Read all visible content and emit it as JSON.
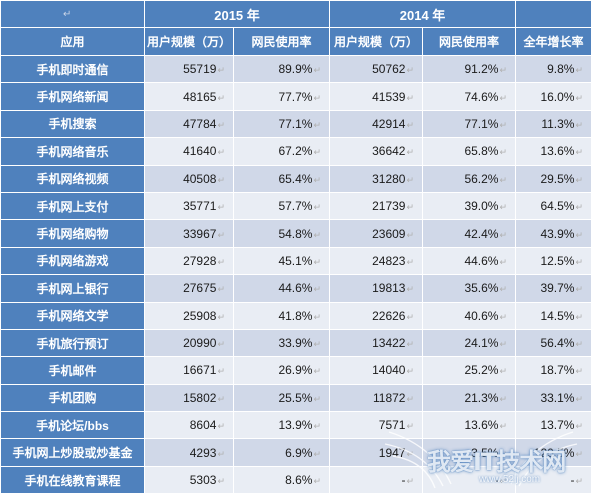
{
  "table": {
    "corner_mark": "↵",
    "year_2015": "2015 年",
    "year_2014": "2014 年",
    "col_app": "应用",
    "col_users_2015": "用户规模（万）",
    "col_rate_2015": "网民使用率",
    "col_users_2014": "用户规模（万）",
    "col_rate_2014": "网民使用率",
    "col_growth": "全年增长率",
    "rows": [
      {
        "app": "手机即时通信",
        "u2015": "55719",
        "r2015": "89.9%",
        "u2014": "50762",
        "r2014": "91.2%",
        "growth": "9.8%"
      },
      {
        "app": "手机网络新闻",
        "u2015": "48165",
        "r2015": "77.7%",
        "u2014": "41539",
        "r2014": "74.6%",
        "growth": "16.0%"
      },
      {
        "app": "手机搜索",
        "u2015": "47784",
        "r2015": "77.1%",
        "u2014": "42914",
        "r2014": "77.1%",
        "growth": "11.3%"
      },
      {
        "app": "手机网络音乐",
        "u2015": "41640",
        "r2015": "67.2%",
        "u2014": "36642",
        "r2014": "65.8%",
        "growth": "13.6%"
      },
      {
        "app": "手机网络视频",
        "u2015": "40508",
        "r2015": "65.4%",
        "u2014": "31280",
        "r2014": "56.2%",
        "growth": "29.5%"
      },
      {
        "app": "手机网上支付",
        "u2015": "35771",
        "r2015": "57.7%",
        "u2014": "21739",
        "r2014": "39.0%",
        "growth": "64.5%"
      },
      {
        "app": "手机网络购物",
        "u2015": "33967",
        "r2015": "54.8%",
        "u2014": "23609",
        "r2014": "42.4%",
        "growth": "43.9%"
      },
      {
        "app": "手机网络游戏",
        "u2015": "27928",
        "r2015": "45.1%",
        "u2014": "24823",
        "r2014": "44.6%",
        "growth": "12.5%"
      },
      {
        "app": "手机网上银行",
        "u2015": "27675",
        "r2015": "44.6%",
        "u2014": "19813",
        "r2014": "35.6%",
        "growth": "39.7%"
      },
      {
        "app": "手机网络文学",
        "u2015": "25908",
        "r2015": "41.8%",
        "u2014": "22626",
        "r2014": "40.6%",
        "growth": "14.5%"
      },
      {
        "app": "手机旅行预订",
        "u2015": "20990",
        "r2015": "33.9%",
        "u2014": "13422",
        "r2014": "24.1%",
        "growth": "56.4%"
      },
      {
        "app": "手机邮件",
        "u2015": "16671",
        "r2015": "26.9%",
        "u2014": "14040",
        "r2014": "25.2%",
        "growth": "18.7%"
      },
      {
        "app": "手机团购",
        "u2015": "15802",
        "r2015": "25.5%",
        "u2014": "11872",
        "r2014": "21.3%",
        "growth": "33.1%"
      },
      {
        "app": "手机论坛/bbs",
        "u2015": "8604",
        "r2015": "13.9%",
        "u2014": "7571",
        "r2014": "13.6%",
        "growth": "13.7%"
      },
      {
        "app": "手机网上炒股或炒基金",
        "u2015": "4293",
        "r2015": "6.9%",
        "u2014": "1947",
        "r2014": "3.5%",
        "growth": "120.5%"
      },
      {
        "app": "手机在线教育课程",
        "u2015": "5303",
        "r2015": "8.6%",
        "u2014": "-",
        "r2014": "-",
        "growth": "-"
      }
    ]
  },
  "watermark": {
    "text": "我爱IT技术网",
    "url": "www.52ij.com"
  }
}
